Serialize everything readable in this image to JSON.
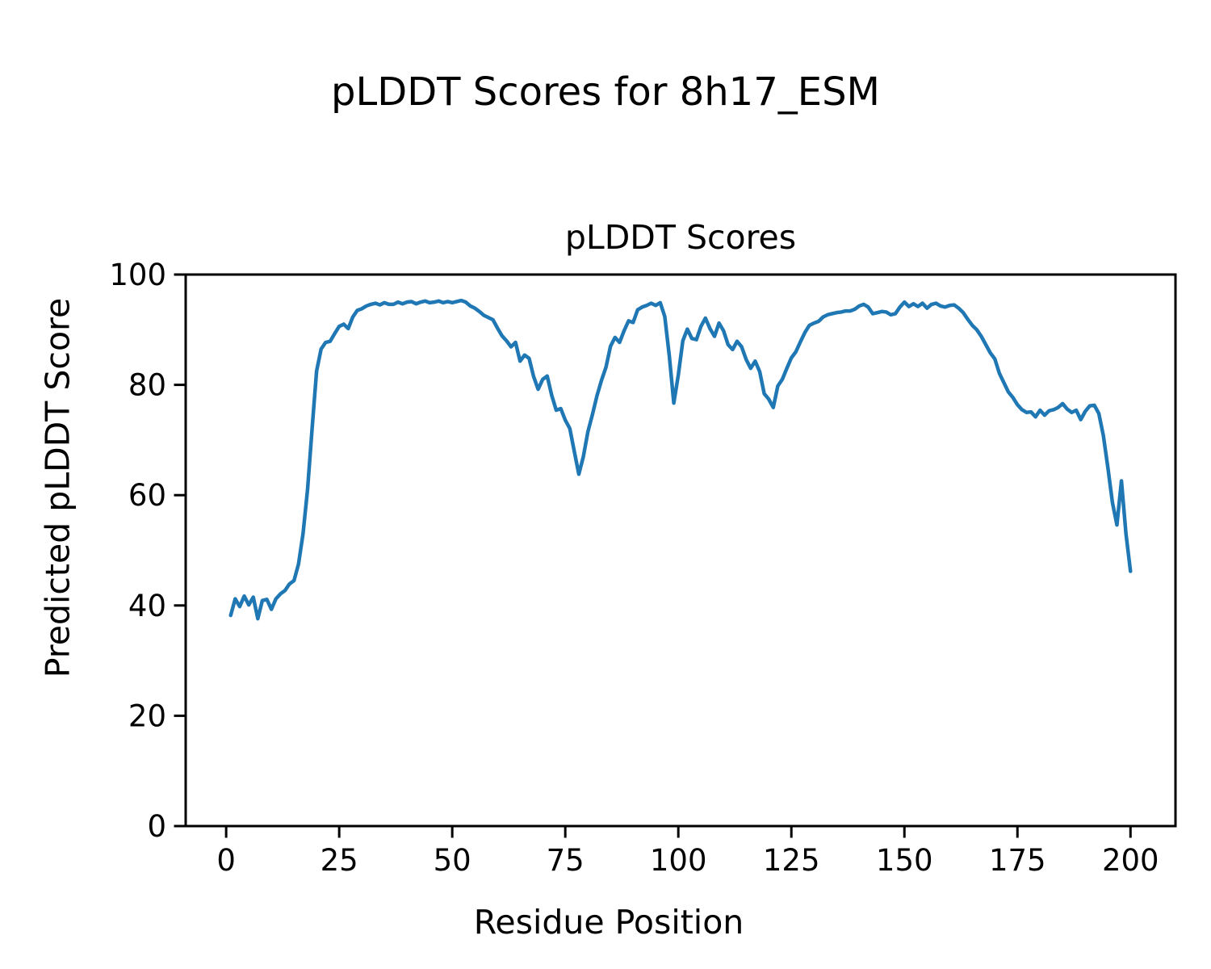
{
  "figure": {
    "suptitle": "pLDDT Scores for 8h17_ESM",
    "background": "#ffffff",
    "text_color": "#000000"
  },
  "chart_data": {
    "type": "line",
    "title": "pLDDT Scores",
    "xlabel": "Residue Position",
    "ylabel": "Predicted pLDDT Score",
    "x_start": 1,
    "xlim": [
      -8.95,
      209.95
    ],
    "ylim": [
      0,
      100
    ],
    "xticks": [
      0,
      25,
      50,
      75,
      100,
      125,
      150,
      175,
      200
    ],
    "yticks": [
      0,
      20,
      40,
      60,
      80,
      100
    ],
    "grid": false,
    "legend": false,
    "line_color": "#1f77b4",
    "series": [
      {
        "name": "pLDDT",
        "values": [
          38.2,
          41.2,
          39.8,
          41.7,
          40.1,
          41.5,
          37.6,
          40.9,
          41.1,
          39.3,
          41.2,
          42.1,
          42.7,
          43.9,
          44.5,
          47.5,
          53.0,
          61.0,
          72.0,
          82.5,
          86.5,
          87.7,
          87.9,
          89.3,
          90.6,
          91.0,
          90.2,
          92.3,
          93.5,
          93.8,
          94.3,
          94.6,
          94.8,
          94.5,
          94.9,
          94.6,
          94.6,
          95.0,
          94.7,
          95.0,
          95.1,
          94.7,
          95.0,
          95.2,
          94.9,
          95.0,
          95.2,
          94.9,
          95.1,
          94.9,
          95.1,
          95.3,
          95.0,
          94.3,
          93.9,
          93.3,
          92.6,
          92.2,
          91.8,
          90.3,
          88.9,
          88.0,
          86.9,
          87.7,
          84.3,
          85.4,
          84.8,
          81.5,
          79.2,
          81.0,
          81.6,
          78.1,
          75.4,
          75.7,
          73.6,
          72.1,
          67.9,
          63.8,
          67.0,
          71.5,
          74.6,
          78.0,
          80.8,
          83.2,
          87.0,
          88.6,
          87.7,
          89.8,
          91.6,
          91.3,
          93.6,
          94.1,
          94.4,
          94.8,
          94.4,
          94.9,
          92.4,
          85.3,
          76.7,
          81.8,
          88.0,
          90.1,
          88.4,
          88.2,
          90.6,
          92.1,
          90.2,
          88.8,
          91.2,
          89.8,
          87.3,
          86.4,
          87.9,
          86.9,
          84.6,
          83.0,
          84.3,
          82.4,
          78.4,
          77.4,
          75.9,
          79.8,
          81.0,
          83.0,
          84.9,
          86.0,
          87.8,
          89.5,
          90.8,
          91.2,
          91.5,
          92.3,
          92.7,
          92.9,
          93.1,
          93.2,
          93.4,
          93.4,
          93.7,
          94.3,
          94.6,
          94.1,
          92.9,
          93.1,
          93.3,
          93.2,
          92.7,
          92.9,
          94.1,
          95.0,
          94.2,
          94.7,
          94.2,
          94.8,
          93.9,
          94.6,
          94.8,
          94.3,
          94.1,
          94.4,
          94.5,
          93.9,
          93.1,
          91.9,
          90.8,
          90.0,
          88.8,
          87.3,
          85.8,
          84.7,
          82.1,
          80.4,
          78.7,
          77.7,
          76.4,
          75.5,
          75.0,
          75.1,
          74.2,
          75.4,
          74.5,
          75.3,
          75.5,
          75.9,
          76.6,
          75.6,
          75.0,
          75.4,
          73.7,
          75.2,
          76.2,
          76.3,
          74.8,
          70.8,
          65.0,
          58.7,
          54.6,
          62.6,
          53.0,
          46.2
        ]
      }
    ]
  }
}
